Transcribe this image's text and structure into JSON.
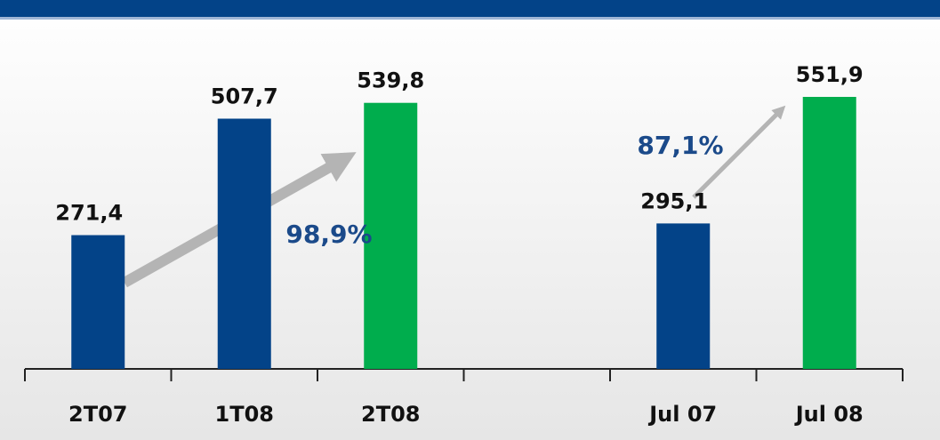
{
  "chart_data": {
    "type": "bar",
    "categories": [
      "2T07",
      "1T08",
      "2T08",
      null,
      "Jul 07",
      "Jul 08"
    ],
    "values": [
      271.4,
      507.7,
      539.8,
      null,
      295.1,
      551.9
    ],
    "value_labels": [
      "271,4",
      "507,7",
      "539,8",
      null,
      "295,1",
      "551,9"
    ],
    "colors": [
      "#034388",
      "#034388",
      "#00ad4d",
      null,
      "#034388",
      "#00ad4d"
    ],
    "annotations": [
      "98,9%",
      "87,1%"
    ]
  }
}
